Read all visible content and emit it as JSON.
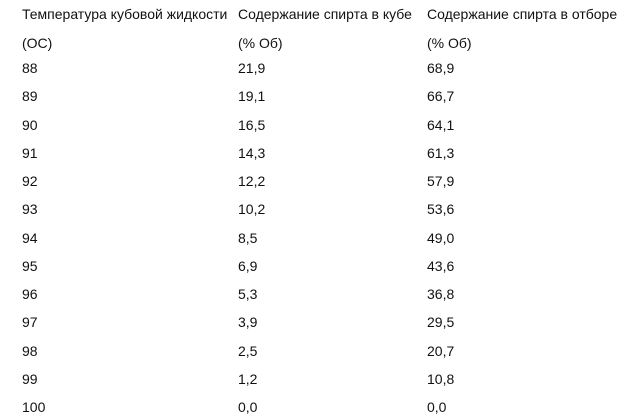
{
  "table": {
    "header": [
      [
        "Температура кубовой жидкости",
        "Содержание спирта в кубе",
        "Содержание спирта в отборе"
      ],
      [
        "(ОС)",
        "(% Об)",
        "(% Об)"
      ]
    ],
    "rows": [
      [
        "88",
        "21,9",
        "68,9"
      ],
      [
        "89",
        "19,1",
        "66,7"
      ],
      [
        "90",
        "16,5",
        "64,1"
      ],
      [
        "91",
        "14,3",
        "61,3"
      ],
      [
        "92",
        "12,2",
        "57,9"
      ],
      [
        "93",
        "10,2",
        "53,6"
      ],
      [
        "94",
        "8,5",
        "49,0"
      ],
      [
        "95",
        "6,9",
        "43,6"
      ],
      [
        "96",
        "5,3",
        "36,8"
      ],
      [
        "97",
        "3,9",
        "29,5"
      ],
      [
        "98",
        "2,5",
        "20,7"
      ],
      [
        "99",
        "1,2",
        "10,8"
      ],
      [
        "100",
        "0,0",
        "0,0"
      ]
    ]
  }
}
